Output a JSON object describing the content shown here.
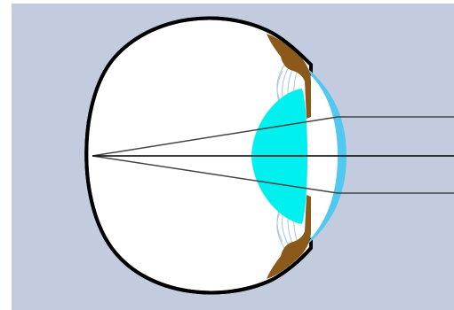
{
  "diagram": {
    "kind": "eye-cross-section",
    "colors": {
      "background_panel": "#c3ccdf",
      "outer_frame": "#ffffff",
      "sclera_fill": "#ffffff",
      "sclera_outline": "#000000",
      "lens": "#00f0f0",
      "cornea": "#50c8f0",
      "iris": "#8b5a1a",
      "zonule_fibers": "#a8c8d8",
      "light_rays": "#444444"
    }
  }
}
